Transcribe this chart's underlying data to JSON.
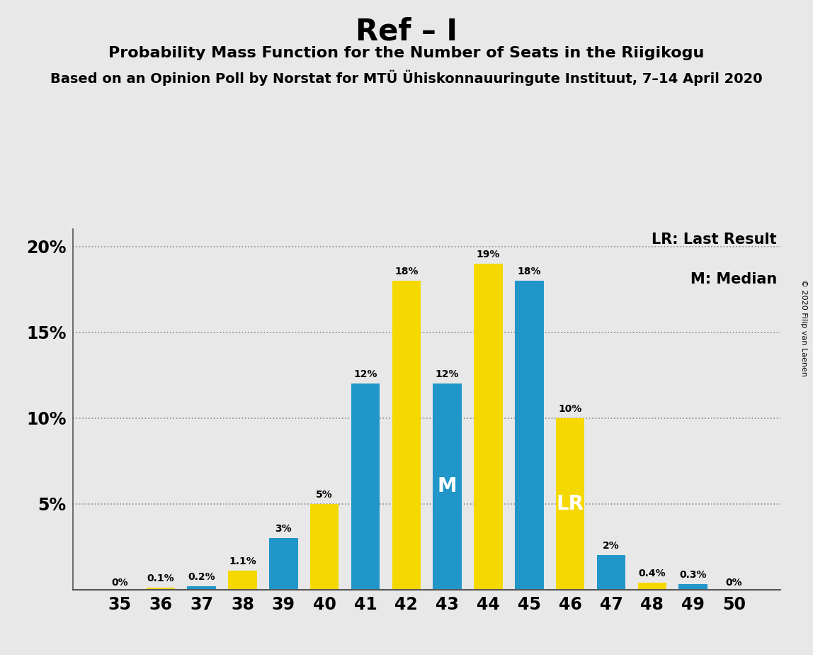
{
  "title": "Ref – I",
  "subtitle": "Probability Mass Function for the Number of Seats in the Riigikogu",
  "subtitle2": "Based on an Opinion Poll by Norstat for MTÜ Ühiskonnauuringute Instituut, 7–14 April 2020",
  "copyright": "© 2020 Filip van Laenen",
  "seats": [
    35,
    36,
    37,
    38,
    39,
    40,
    41,
    42,
    43,
    44,
    45,
    46,
    47,
    48,
    49,
    50
  ],
  "bar_values": [
    0.0,
    0.1,
    0.2,
    1.1,
    3.0,
    5.0,
    12.0,
    18.0,
    12.0,
    19.0,
    18.0,
    10.0,
    2.0,
    0.4,
    0.3,
    0.0
  ],
  "bar_colors": [
    "#F5D800",
    "#F5D800",
    "#2196C8",
    "#F5D800",
    "#2196C8",
    "#F5D800",
    "#2196C8",
    "#F5D800",
    "#2196C8",
    "#F5D800",
    "#2196C8",
    "#F5D800",
    "#2196C8",
    "#F5D800",
    "#2196C8",
    "#F5D800"
  ],
  "bar_labels": [
    "0%",
    "0.1%",
    "0.2%",
    "1.1%",
    "3%",
    "5%",
    "12%",
    "18%",
    "12%",
    "19%",
    "18%",
    "10%",
    "2%",
    "0.4%",
    "0.3%",
    "0%"
  ],
  "inside_labels": {
    "8": "M",
    "11": "LR"
  },
  "inside_label_color": "white",
  "blue_color": "#2196C8",
  "yellow_color": "#F5D800",
  "background_color": "#E8E8E8",
  "ylim": [
    0,
    21
  ],
  "yticks": [
    0,
    5,
    10,
    15,
    20
  ],
  "ytick_labels": [
    "",
    "5%",
    "10%",
    "15%",
    "20%"
  ],
  "legend_lr": "LR: Last Result",
  "legend_m": "M: Median",
  "bar_width": 0.7
}
